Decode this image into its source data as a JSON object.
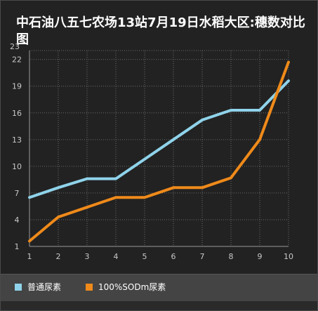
{
  "chart_data": {
    "type": "line",
    "title": "中石油八五七农场13站7月19日水稻大区:穗数对比图",
    "x": [
      1,
      2,
      3,
      4,
      5,
      6,
      7,
      8,
      9,
      10
    ],
    "xlim": [
      1,
      10
    ],
    "yticks": [
      1,
      4,
      7,
      10,
      13,
      16,
      19,
      22
    ],
    "ylim": [
      1,
      23
    ],
    "ytop_label": "23",
    "grid": true,
    "legend_position": "bottom",
    "series": [
      {
        "name": "普通尿素",
        "color": "#8fd3ea",
        "values": [
          6.5,
          7.6,
          8.6,
          8.6,
          10.8,
          13.0,
          15.2,
          16.3,
          16.3,
          19.6
        ]
      },
      {
        "name": "100%SODm尿素",
        "color": "#ef8a1a",
        "values": [
          1.6,
          4.3,
          5.4,
          6.5,
          6.5,
          7.6,
          7.6,
          8.7,
          13.0,
          21.7
        ]
      }
    ]
  }
}
